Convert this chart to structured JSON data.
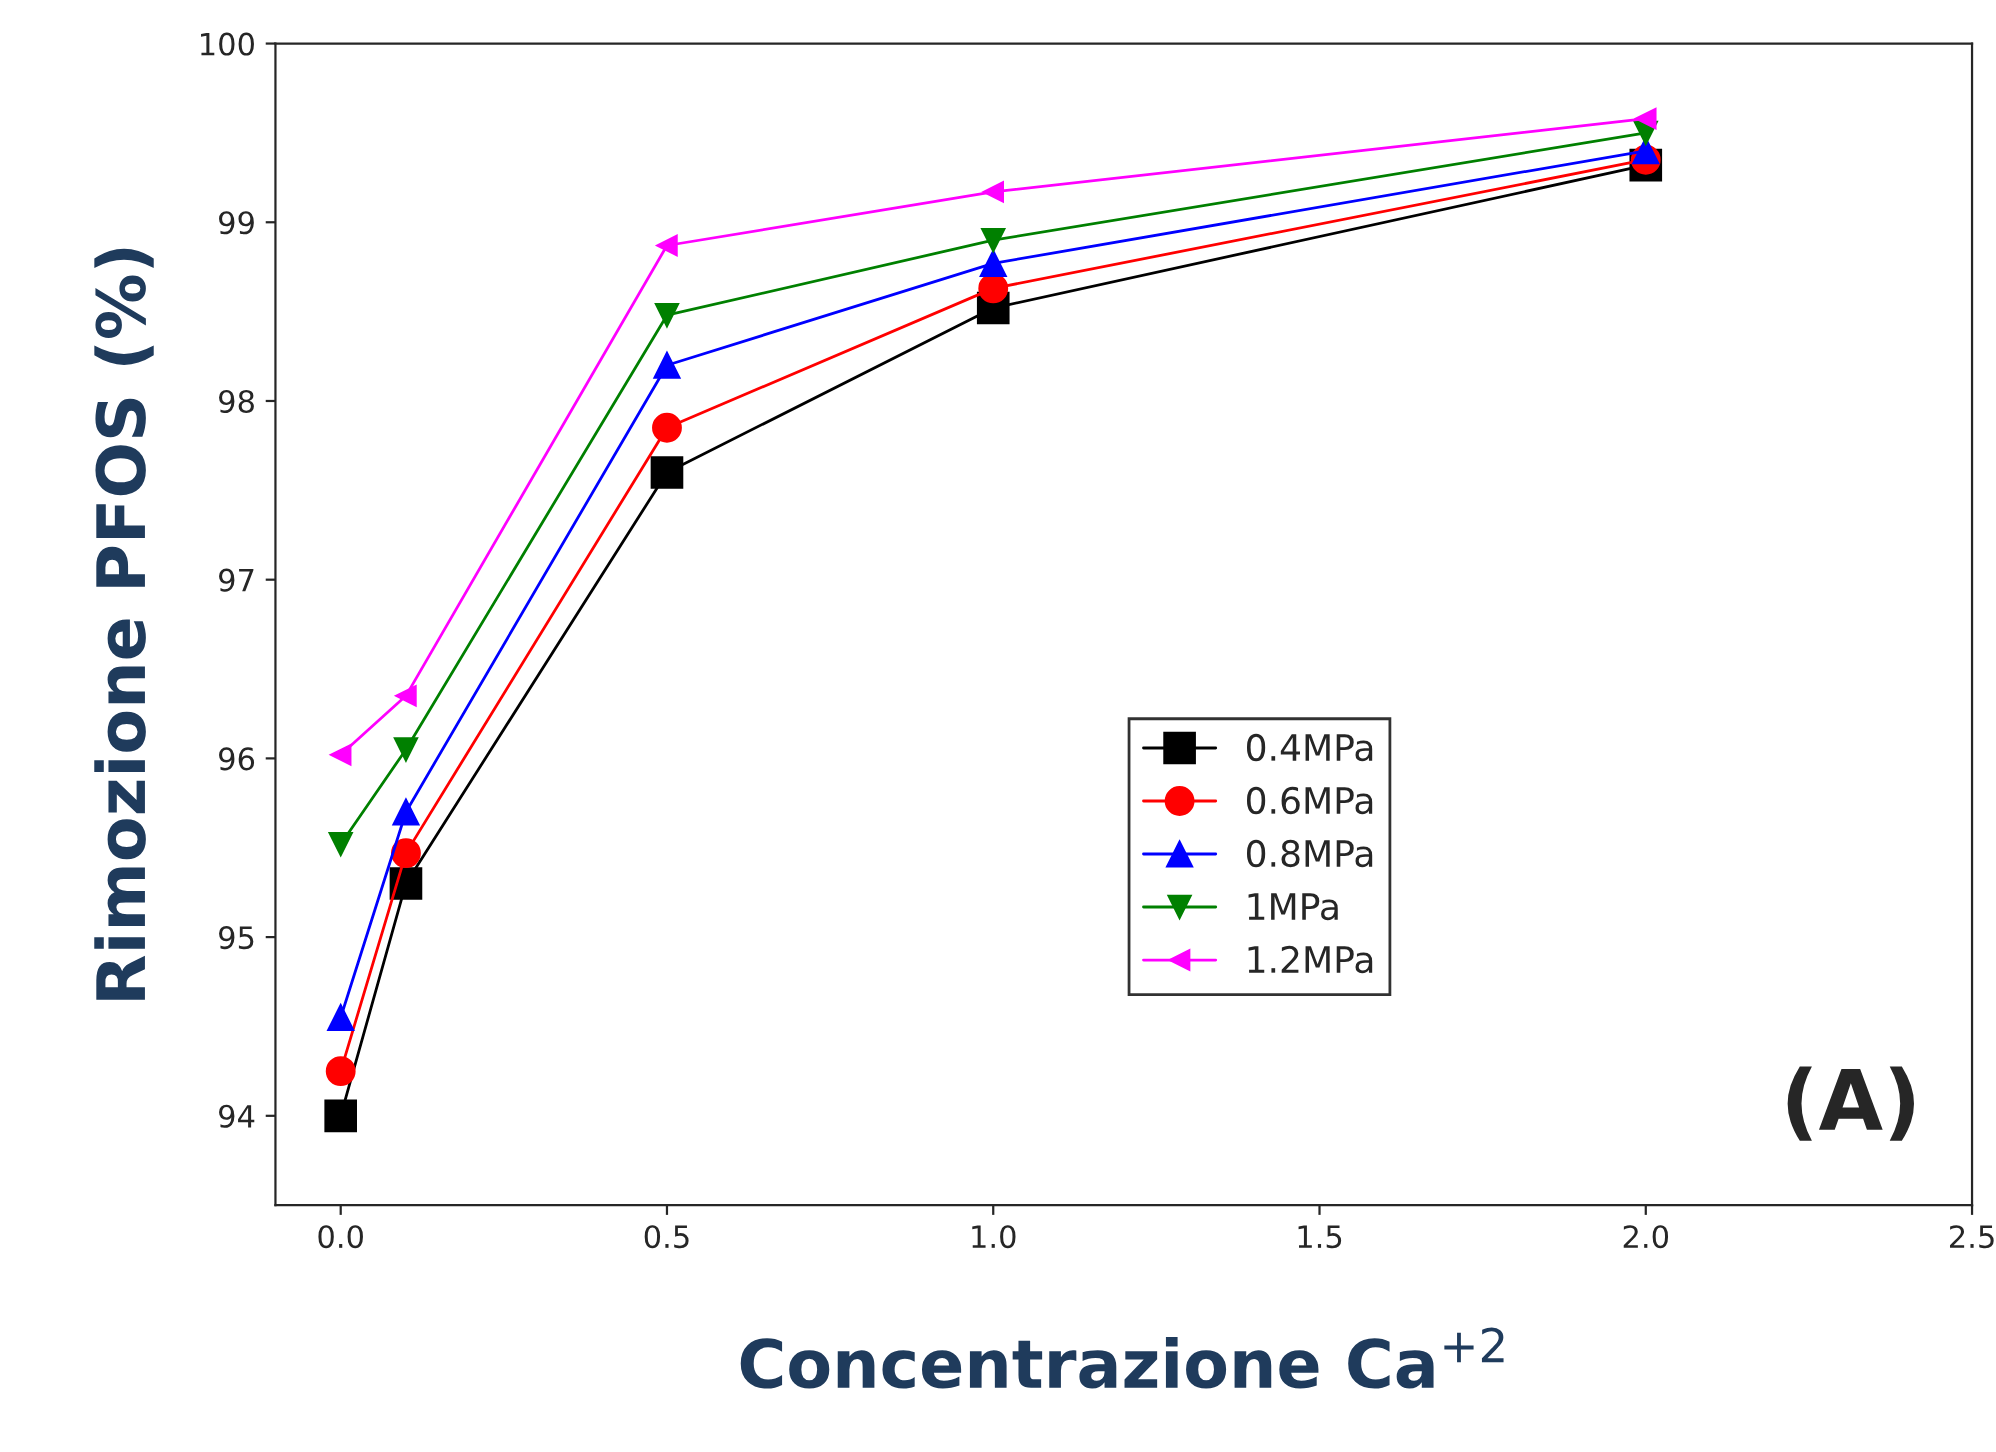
{
  "chart_data": {
    "type": "line",
    "xlabel": "Concentrazione Ca$^{+2}$",
    "ylabel": "Rimozione PFOS (%)",
    "x": [
      0,
      0.1,
      0.5,
      1.0,
      2.0
    ],
    "series": [
      {
        "name": "0.4MPa",
        "color": "#000000",
        "marker": "square",
        "values": [
          94.0,
          95.3,
          97.6,
          98.52,
          99.32
        ]
      },
      {
        "name": "0.6MPa",
        "color": "#ff0000",
        "marker": "circle",
        "values": [
          94.25,
          95.47,
          97.85,
          98.63,
          99.35
        ]
      },
      {
        "name": "0.8MPa",
        "color": "#0000ff",
        "marker": "triangle",
        "values": [
          94.55,
          95.7,
          98.2,
          98.77,
          99.4
        ]
      },
      {
        "name": "1MPa",
        "color": "#008000",
        "marker": "triangle-down",
        "values": [
          95.52,
          96.05,
          98.48,
          98.9,
          99.5
        ]
      },
      {
        "name": "1.2MPa",
        "color": "#ff00ff",
        "marker": "triangle-left",
        "values": [
          96.02,
          96.35,
          98.87,
          99.17,
          99.58
        ]
      }
    ],
    "xlim": [
      -0.1,
      2.5
    ],
    "ylim": [
      93.5,
      100
    ],
    "xticks": [
      {
        "value": 0,
        "label": "0.0"
      },
      {
        "value": 0.5,
        "label": "0.5"
      },
      {
        "value": 1.0,
        "label": "1.0"
      },
      {
        "value": 1.5,
        "label": "1.5"
      },
      {
        "value": 2.0,
        "label": "2.0"
      },
      {
        "value": 2.5,
        "label": "2.5"
      }
    ],
    "yticks": [
      94,
      95,
      96,
      97,
      98,
      99,
      100
    ],
    "annotations": [
      "(A)"
    ],
    "legend": "center",
    "grid": false,
    "line_style": "solid"
  }
}
